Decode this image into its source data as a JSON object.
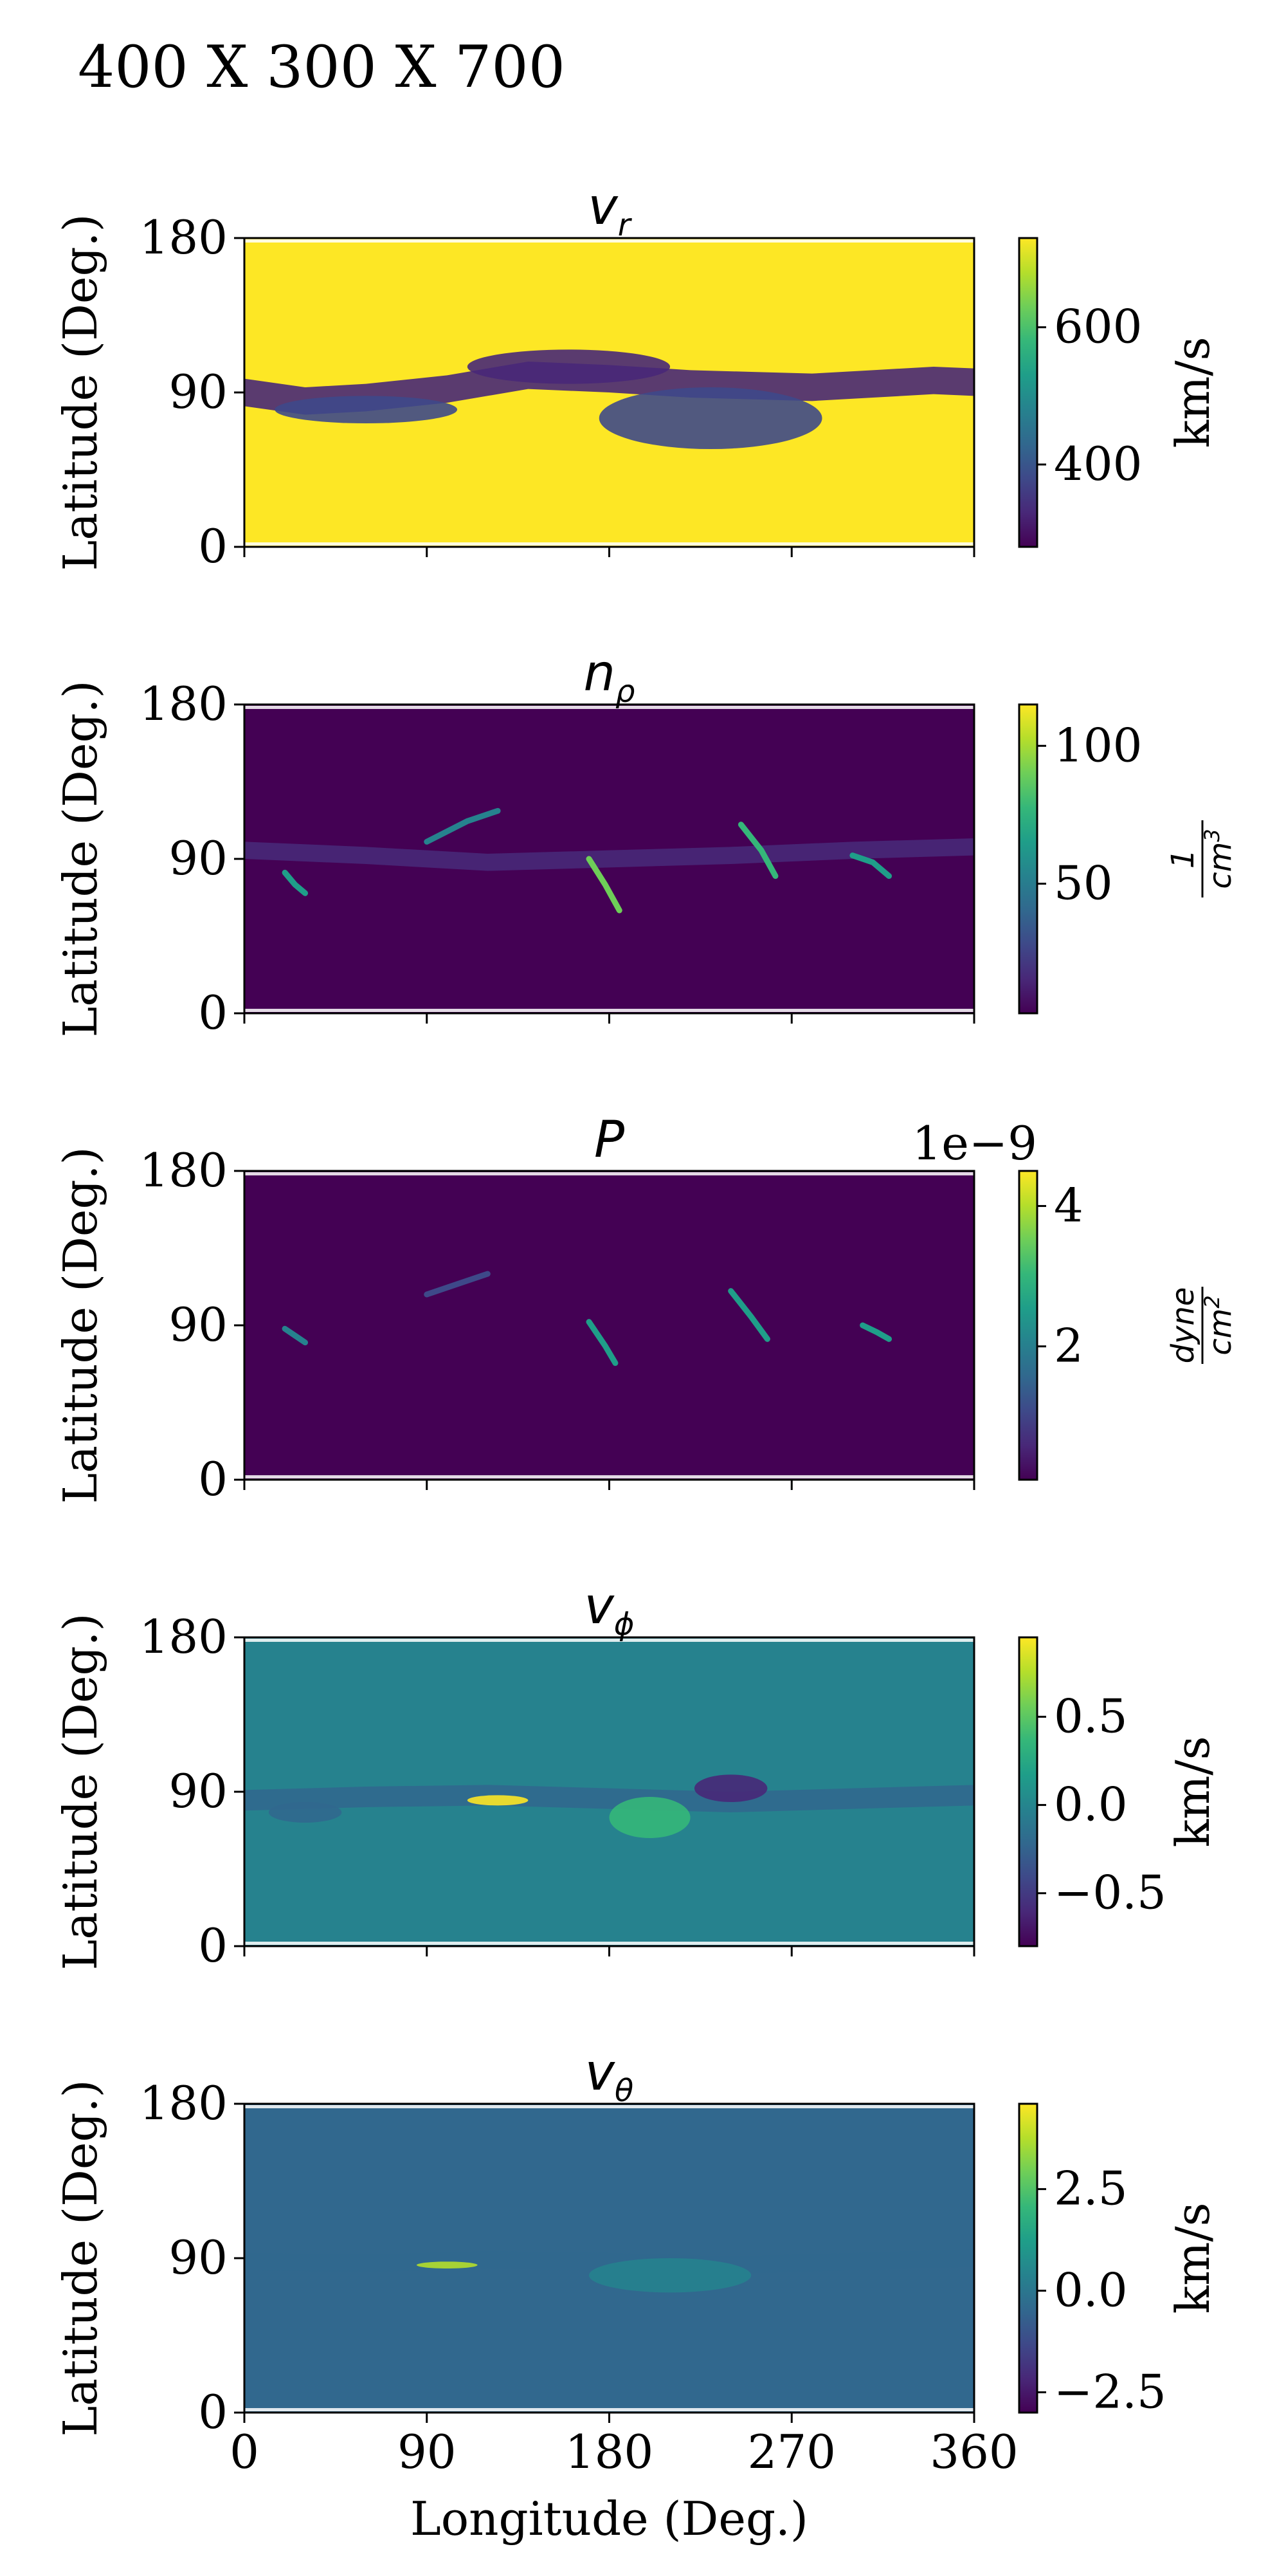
{
  "figure": {
    "suptitle": "400 X 300 X 700",
    "xlabel": "Longitude (Deg.)",
    "ylabel": "Latitude (Deg.)"
  },
  "colormap": {
    "name": "viridis",
    "stops": [
      "#440154",
      "#482878",
      "#3e4989",
      "#31688e",
      "#26828e",
      "#1f9e89",
      "#35b779",
      "#6ece58",
      "#b5de2b",
      "#fde725"
    ]
  },
  "chart_data": [
    {
      "type": "heatmap",
      "title": "v",
      "title_sub": "r",
      "xlabel": "",
      "ylabel": "Latitude (Deg.)",
      "xlim": [
        0,
        360
      ],
      "ylim": [
        0,
        180
      ],
      "x_ticks": [
        "0",
        "90",
        "180",
        "270",
        "360"
      ],
      "y_ticks": [
        "0",
        "90",
        "180"
      ],
      "colorbar": {
        "label": "km/s",
        "range": [
          280,
          730
        ],
        "ticks": [
          "400",
          "600"
        ],
        "tick_values": [
          400,
          600
        ],
        "offset": ""
      },
      "background": 0.97,
      "features": [
        {
          "kind": "band",
          "value": 0.08,
          "points": [
            [
              0,
              90
            ],
            [
              30,
              85
            ],
            [
              60,
              87
            ],
            [
              100,
              92
            ],
            [
              140,
              100
            ],
            [
              180,
              98
            ],
            [
              220,
              95
            ],
            [
              250,
              94
            ],
            [
              280,
              93
            ],
            [
              310,
              95
            ],
            [
              340,
              97
            ],
            [
              360,
              96
            ]
          ],
          "halfwidth": 8
        },
        {
          "kind": "blob",
          "value": 0.2,
          "x": 230,
          "y": 75,
          "rx": 55,
          "ry": 18
        },
        {
          "kind": "blob",
          "value": 0.12,
          "x": 160,
          "y": 105,
          "rx": 50,
          "ry": 10
        },
        {
          "kind": "blob",
          "value": 0.25,
          "x": 60,
          "y": 80,
          "rx": 45,
          "ry": 8
        }
      ]
    },
    {
      "type": "heatmap",
      "title": "n",
      "title_sub": "ρ",
      "xlabel": "",
      "ylabel": "Latitude (Deg.)",
      "xlim": [
        0,
        360
      ],
      "ylim": [
        0,
        180
      ],
      "x_ticks": [
        "0",
        "90",
        "180",
        "270",
        "360"
      ],
      "y_ticks": [
        "0",
        "90",
        "180"
      ],
      "colorbar": {
        "label": "1/cm3",
        "range": [
          3,
          115
        ],
        "ticks": [
          "50",
          "100"
        ],
        "tick_values": [
          50,
          100
        ],
        "offset": ""
      },
      "background": 0.02,
      "features": [
        {
          "kind": "band",
          "value": 0.12,
          "points": [
            [
              0,
              95
            ],
            [
              60,
              92
            ],
            [
              120,
              88
            ],
            [
              180,
              90
            ],
            [
              240,
              92
            ],
            [
              300,
              95
            ],
            [
              360,
              97
            ]
          ],
          "halfwidth": 5
        },
        {
          "kind": "arc",
          "value": 0.75,
          "points": [
            [
              170,
              90
            ],
            [
              178,
              75
            ],
            [
              185,
              60
            ]
          ]
        },
        {
          "kind": "arc",
          "value": 0.65,
          "points": [
            [
              245,
              110
            ],
            [
              255,
              95
            ],
            [
              262,
              80
            ]
          ]
        },
        {
          "kind": "arc",
          "value": 0.55,
          "points": [
            [
              300,
              92
            ],
            [
              310,
              88
            ],
            [
              318,
              80
            ]
          ]
        },
        {
          "kind": "arc",
          "value": 0.5,
          "points": [
            [
              20,
              82
            ],
            [
              25,
              75
            ],
            [
              30,
              70
            ]
          ]
        },
        {
          "kind": "arc",
          "value": 0.45,
          "points": [
            [
              90,
              100
            ],
            [
              110,
              112
            ],
            [
              125,
              118
            ]
          ]
        }
      ]
    },
    {
      "type": "heatmap",
      "title": "P",
      "title_sub": "",
      "xlabel": "",
      "ylabel": "Latitude (Deg.)",
      "xlim": [
        0,
        360
      ],
      "ylim": [
        0,
        180
      ],
      "x_ticks": [
        "0",
        "90",
        "180",
        "270",
        "360"
      ],
      "y_ticks": [
        "0",
        "90",
        "180"
      ],
      "colorbar": {
        "label": "dyne/cm2",
        "range": [
          0.1,
          4.5
        ],
        "ticks": [
          "2",
          "4"
        ],
        "tick_values": [
          2,
          4
        ],
        "offset": "1e−9"
      },
      "background": 0.02,
      "features": [
        {
          "kind": "arc",
          "value": 0.6,
          "points": [
            [
              170,
              92
            ],
            [
              178,
              78
            ],
            [
              183,
              68
            ]
          ]
        },
        {
          "kind": "arc",
          "value": 0.55,
          "points": [
            [
              240,
              110
            ],
            [
              250,
              95
            ],
            [
              258,
              82
            ]
          ]
        },
        {
          "kind": "arc",
          "value": 0.5,
          "points": [
            [
              305,
              90
            ],
            [
              312,
              86
            ],
            [
              318,
              82
            ]
          ]
        },
        {
          "kind": "arc",
          "value": 0.4,
          "points": [
            [
              20,
              88
            ],
            [
              25,
              84
            ],
            [
              30,
              80
            ]
          ]
        },
        {
          "kind": "arc",
          "value": 0.25,
          "points": [
            [
              90,
              108
            ],
            [
              110,
              116
            ],
            [
              120,
              120
            ]
          ]
        }
      ]
    },
    {
      "type": "heatmap",
      "title": "v",
      "title_sub": "ϕ",
      "xlabel": "",
      "ylabel": "Latitude (Deg.)",
      "xlim": [
        0,
        360
      ],
      "ylim": [
        0,
        180
      ],
      "x_ticks": [
        "0",
        "90",
        "180",
        "270",
        "360"
      ],
      "y_ticks": [
        "0",
        "90",
        "180"
      ],
      "colorbar": {
        "label": "km/s",
        "range": [
          -0.8,
          0.95
        ],
        "ticks": [
          "−0.5",
          "0.0",
          "0.5"
        ],
        "tick_values": [
          -0.5,
          0,
          0.5
        ],
        "offset": ""
      },
      "background": 0.45,
      "features": [
        {
          "kind": "band",
          "value": 0.3,
          "points": [
            [
              0,
              85
            ],
            [
              60,
              87
            ],
            [
              120,
              88
            ],
            [
              180,
              86
            ],
            [
              240,
              84
            ],
            [
              300,
              86
            ],
            [
              360,
              88
            ]
          ],
          "halfwidth": 6
        },
        {
          "kind": "blob",
          "value": 0.95,
          "x": 125,
          "y": 85,
          "rx": 15,
          "ry": 3
        },
        {
          "kind": "blob",
          "value": 0.15,
          "x": 240,
          "y": 92,
          "rx": 18,
          "ry": 8
        },
        {
          "kind": "blob",
          "value": 0.65,
          "x": 200,
          "y": 75,
          "rx": 20,
          "ry": 12
        },
        {
          "kind": "blob",
          "value": 0.3,
          "x": 30,
          "y": 78,
          "rx": 18,
          "ry": 6
        }
      ]
    },
    {
      "type": "heatmap",
      "title": "v",
      "title_sub": "θ",
      "xlabel": "Longitude (Deg.)",
      "ylabel": "Latitude (Deg.)",
      "xlim": [
        0,
        360
      ],
      "ylim": [
        0,
        180
      ],
      "x_ticks": [
        "0",
        "90",
        "180",
        "270",
        "360"
      ],
      "y_ticks": [
        "0",
        "90",
        "180"
      ],
      "colorbar": {
        "label": "km/s",
        "range": [
          -3,
          4.6
        ],
        "ticks": [
          "−2.5",
          "0.0",
          "2.5"
        ],
        "tick_values": [
          -2.5,
          0,
          2.5
        ],
        "offset": ""
      },
      "background": 0.38,
      "features": [
        {
          "kind": "band",
          "value": 0.32,
          "points": [
            [
              0,
              88
            ],
            [
              60,
              87
            ],
            [
              120,
              89
            ],
            [
              180,
              88
            ],
            [
              240,
              86
            ],
            [
              300,
              88
            ],
            [
              360,
              90
            ]
          ],
          "halfwidth": 5
        },
        {
          "kind": "blob",
          "value": 0.9,
          "x": 100,
          "y": 86,
          "rx": 15,
          "ry": 2
        },
        {
          "kind": "blob",
          "value": 0.45,
          "x": 210,
          "y": 80,
          "rx": 40,
          "ry": 10
        }
      ]
    }
  ]
}
